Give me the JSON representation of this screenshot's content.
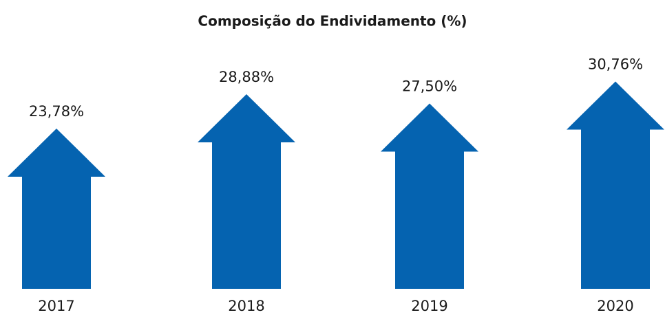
{
  "chart_data": {
    "type": "arrow-bar",
    "title": "Composição do Endividamento (%)",
    "categories": [
      "2017",
      "2018",
      "2019",
      "2020"
    ],
    "values": [
      23.78,
      28.88,
      27.5,
      30.76
    ],
    "value_labels": [
      "23,78%",
      "28,88%",
      "27,50%",
      "30,76%"
    ],
    "color": "#0563b0"
  }
}
